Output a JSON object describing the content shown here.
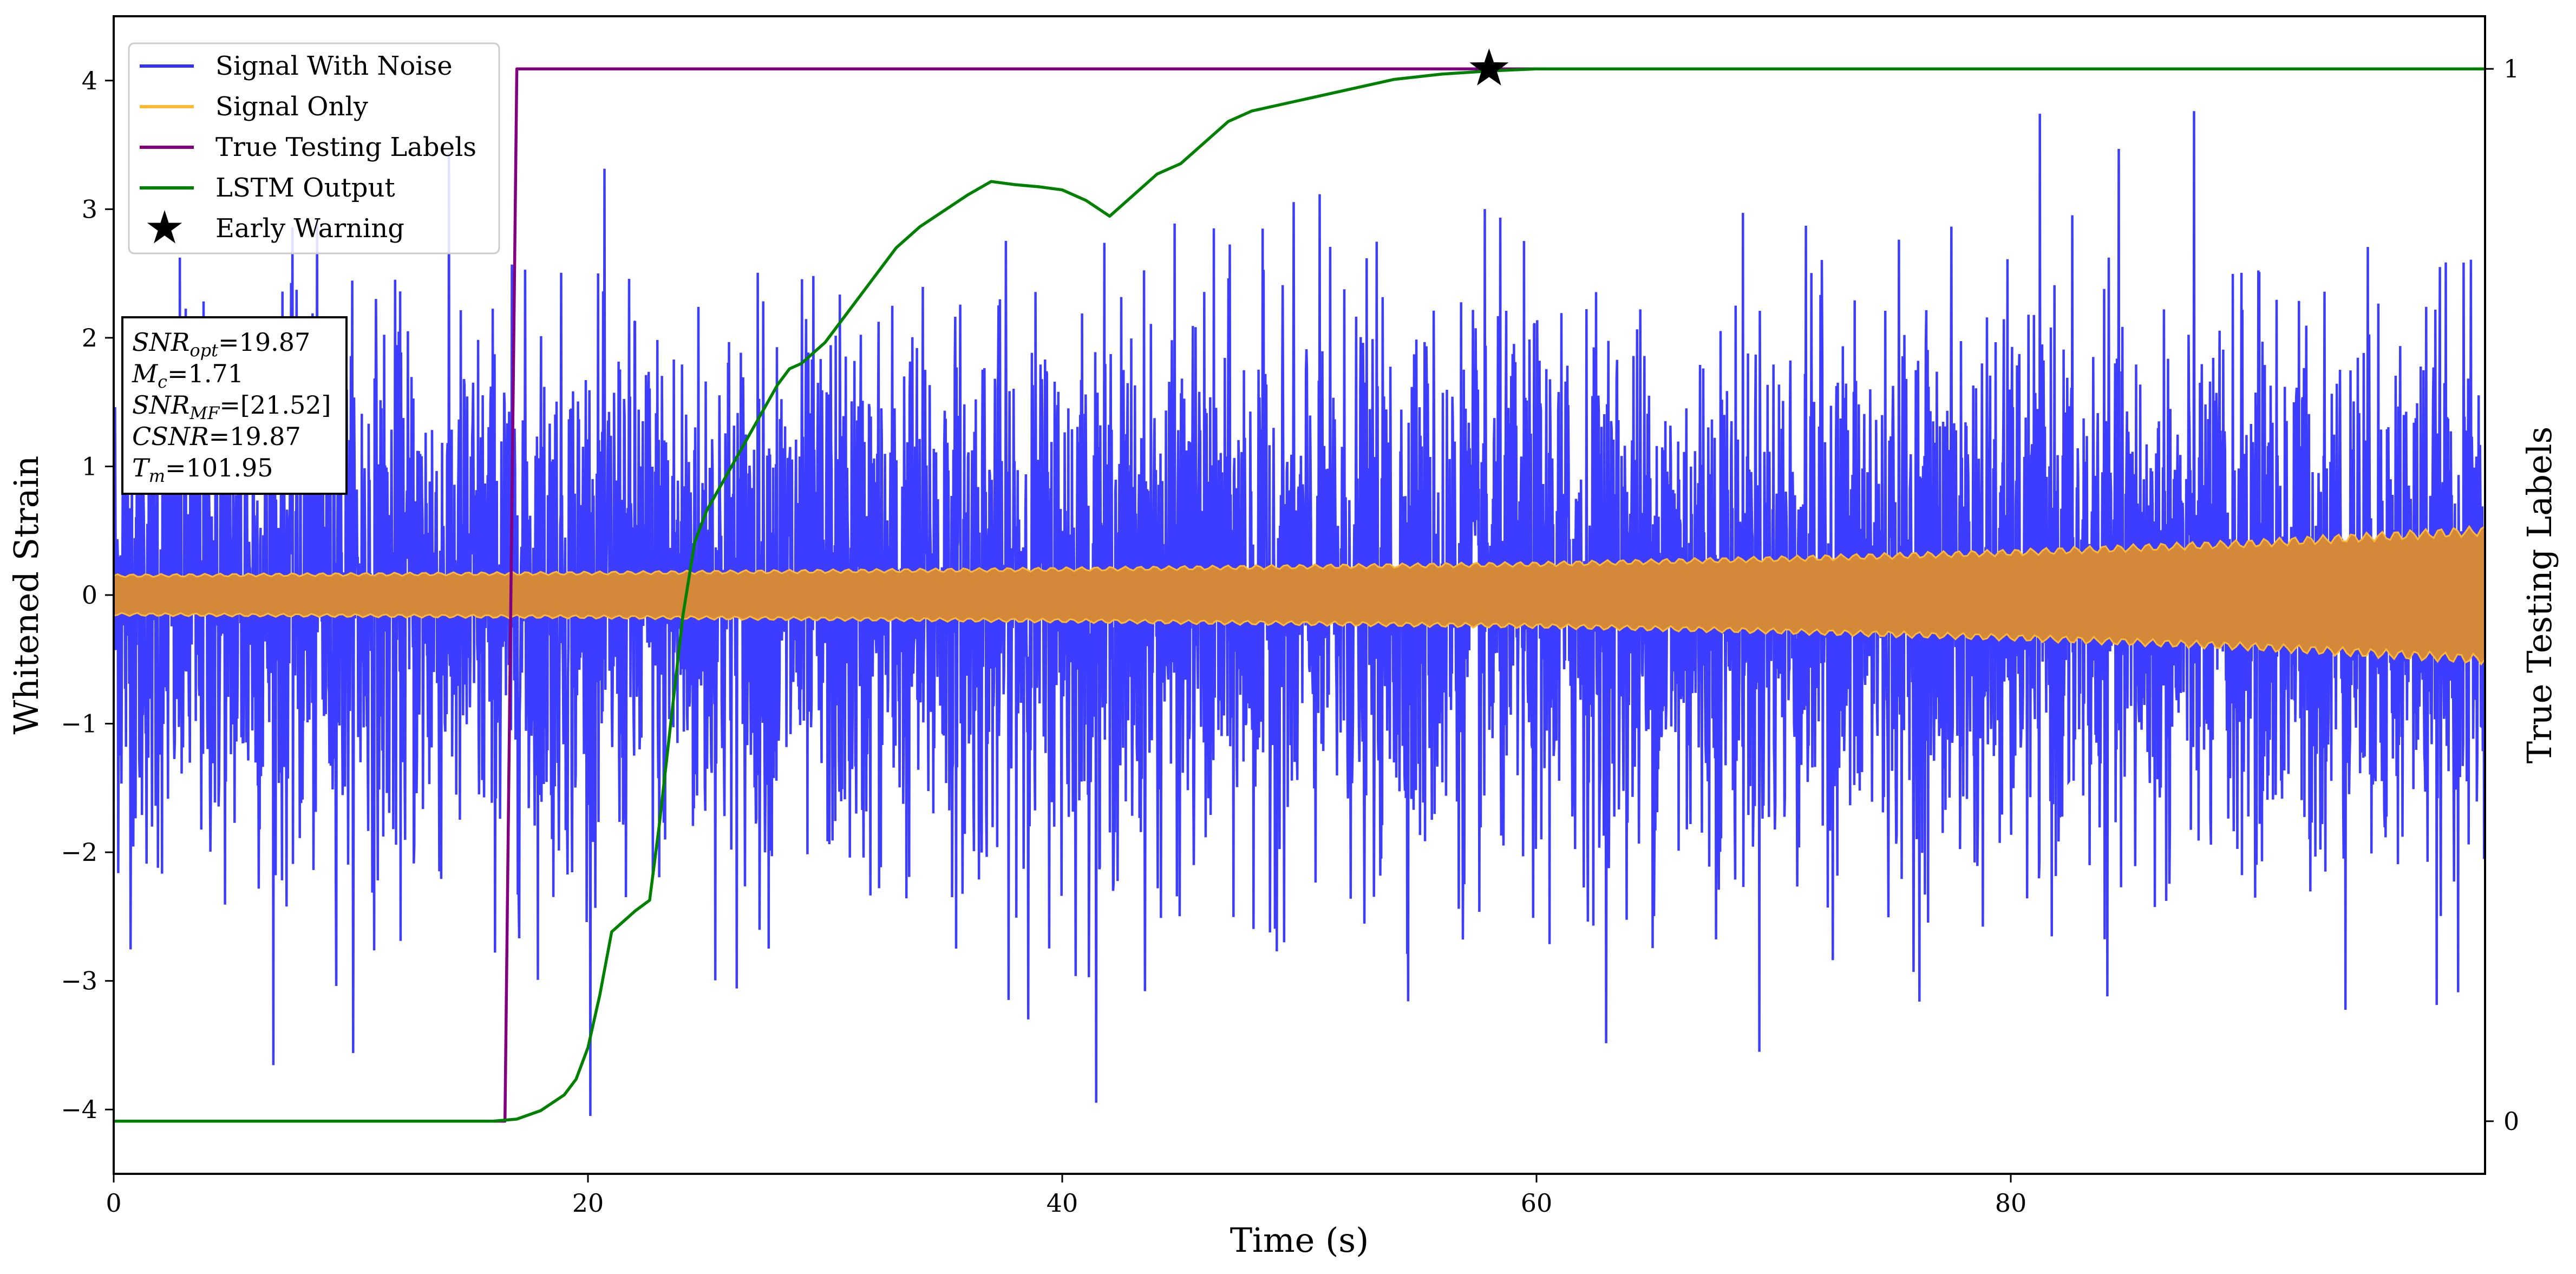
{
  "chart_data": {
    "type": "line",
    "xlabel": "Time (s)",
    "ylabel": "Whitened Strain",
    "y2label": "True Testing Labels",
    "xlim": [
      0,
      100
    ],
    "ylim": [
      -4.5,
      4.5
    ],
    "y2lim": [
      -0.05,
      1.05
    ],
    "x_ticks": [
      0,
      20,
      40,
      60,
      80
    ],
    "y_ticks": [
      -4,
      -3,
      -2,
      -1,
      0,
      1,
      2,
      3,
      4
    ],
    "y2_ticks": [
      0,
      1
    ],
    "grid": false,
    "legend_position": "upper left",
    "legend": [
      {
        "label": "Signal With Noise",
        "color": "#3333ff",
        "kind": "line"
      },
      {
        "label": "Signal Only",
        "color": "#ffb833",
        "kind": "line"
      },
      {
        "label": "True Testing Labels",
        "color": "#800080",
        "kind": "line"
      },
      {
        "label": "LSTM Output",
        "color": "#008000",
        "kind": "line"
      },
      {
        "label": "Early Warning",
        "color": "#000000",
        "kind": "star"
      }
    ],
    "annotation_lines": [
      {
        "base": "SNR",
        "sub": "opt",
        "value": "=19.87"
      },
      {
        "base": "M",
        "sub": "c",
        "value": "=1.71"
      },
      {
        "base": "SNR",
        "sub": "MF",
        "value": "=[21.52]"
      },
      {
        "base": "CSNR",
        "sub": "",
        "value": "=19.87"
      },
      {
        "base": "T",
        "sub": "m",
        "value": "=101.95"
      }
    ],
    "series": [
      {
        "name": "Signal With Noise",
        "axis": "left",
        "color": "#3333ff",
        "kind": "noise",
        "typical_band": [
          -1.5,
          1.5
        ],
        "approx_range": [
          -4.05,
          4.0
        ]
      },
      {
        "name": "Signal Only",
        "axis": "left",
        "color": "#ffb833",
        "kind": "envelope",
        "x": [
          0,
          20,
          40,
          60,
          70,
          80,
          90,
          100
        ],
        "amplitude": [
          0.15,
          0.17,
          0.2,
          0.24,
          0.28,
          0.33,
          0.4,
          0.5
        ]
      },
      {
        "name": "True Testing Labels",
        "axis": "right",
        "color": "#800080",
        "x": [
          0,
          16.5,
          17.0,
          100
        ],
        "y": [
          0,
          0,
          1,
          1
        ]
      },
      {
        "name": "LSTM Output",
        "axis": "right",
        "color": "#008000",
        "x": [
          0,
          16,
          17,
          18,
          19,
          19.5,
          20,
          20.5,
          21,
          22,
          22.6,
          23,
          23.5,
          24,
          24.5,
          25,
          26,
          27,
          28,
          28.5,
          29,
          30,
          31,
          32,
          33,
          34,
          35,
          36,
          37,
          38,
          39,
          40,
          41,
          42,
          43,
          44,
          45,
          46,
          47,
          48,
          50,
          52,
          54,
          56,
          58,
          60,
          62,
          65,
          70,
          100
        ],
        "y": [
          0,
          0,
          0.002,
          0.01,
          0.025,
          0.04,
          0.07,
          0.12,
          0.18,
          0.2,
          0.21,
          0.28,
          0.38,
          0.48,
          0.55,
          0.58,
          0.62,
          0.66,
          0.7,
          0.715,
          0.72,
          0.74,
          0.77,
          0.8,
          0.83,
          0.85,
          0.865,
          0.88,
          0.893,
          0.89,
          0.888,
          0.885,
          0.875,
          0.86,
          0.88,
          0.9,
          0.91,
          0.93,
          0.95,
          0.96,
          0.97,
          0.98,
          0.99,
          0.995,
          0.998,
          1.0,
          1.0,
          1.0,
          1.0,
          1.0
        ]
      }
    ],
    "early_warning": {
      "x": 58,
      "y": 1.0,
      "axis": "right",
      "marker": "star"
    }
  }
}
